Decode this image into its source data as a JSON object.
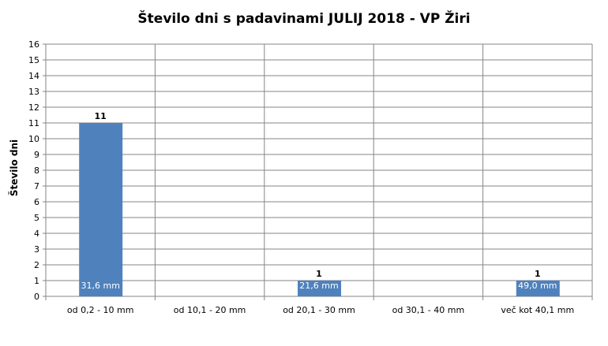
{
  "chart_data": {
    "type": "bar",
    "title": "Število dni s padavinami JULIJ 2018 - VP Žiri",
    "xlabel": "",
    "ylabel": "Število dni",
    "ylim": [
      0,
      16
    ],
    "yticks": [
      0,
      1,
      2,
      3,
      4,
      5,
      6,
      7,
      8,
      9,
      10,
      11,
      12,
      13,
      14,
      15,
      16
    ],
    "grid": true,
    "categories": [
      "od 0,2 - 10 mm",
      "od 10,1 - 20 mm",
      "od 20,1 - 30 mm",
      "od 30,1 - 40 mm",
      "več kot 40,1 mm"
    ],
    "values": [
      11,
      0,
      1,
      0,
      1
    ],
    "value_labels": [
      "11",
      "",
      "1",
      "",
      "1"
    ],
    "inner_labels": [
      "31,6 mm",
      "",
      "21,6 mm",
      "",
      "49,0 mm"
    ],
    "bar_color": "#4F81BD"
  }
}
